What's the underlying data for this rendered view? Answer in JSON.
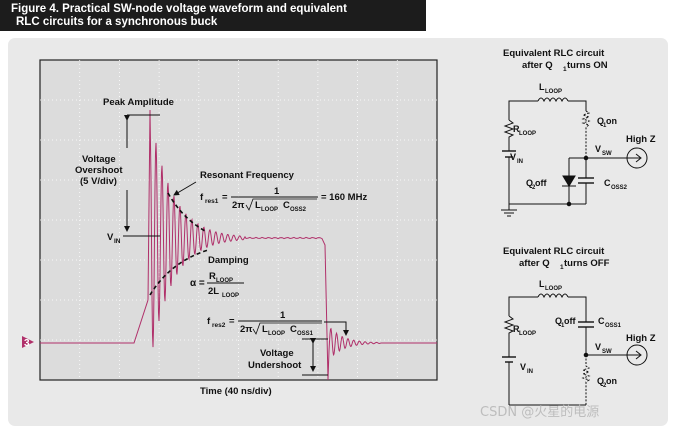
{
  "figure_title_line1": "Figure 4. Practical SW-node voltage waveform and equivalent",
  "figure_title_line2": "RLC circuits for a synchronous buck",
  "scope": {
    "peak_amplitude": "Peak Amplitude",
    "voltage_overshoot": [
      "Voltage",
      "Overshoot",
      "(5 V/div)"
    ],
    "vin": "V",
    "vin_sub": "IN",
    "resonant_frequency": "Resonant Frequency",
    "fres1_prefix": "f",
    "fres1_sub": "res1",
    "fres1_value": "= 160 MHz",
    "damping": "Damping",
    "alpha": "α =",
    "fres2_prefix": "f",
    "fres2_sub": "res2",
    "voltage_undershoot": [
      "Voltage",
      "Undershoot"
    ],
    "time_axis": "Time (40 ns/div)",
    "channel_marker": "3",
    "eq_one": "1",
    "eq_two_pi": "2π",
    "eq_L": "L",
    "eq_loop": "LOOP",
    "eq_C": "C",
    "eq_oss2": "OSS2",
    "eq_oss1": "OSS1",
    "eq_R": "R",
    "eq_two_L": "2L",
    "eq_equals": "="
  },
  "circuit_on": {
    "title": [
      "Equivalent RLC circuit",
      "after Q"
    ],
    "title_sub": "1",
    "title_tail": " turns ON",
    "lloop": "L",
    "lloop_sub": "LOOP",
    "rloop": "R",
    "rloop_sub": "LOOP",
    "q1": "Q",
    "q1_sub": "1",
    "q1_tail": " on",
    "vin": "V",
    "vin_sub": "IN",
    "vsw": "V",
    "vsw_sub": "SW",
    "highz": "High Z",
    "q2": "Q",
    "q2_sub": "2",
    "q2_tail": " off",
    "coss": "C",
    "coss_sub": "OSS2"
  },
  "circuit_off": {
    "title": [
      "Equivalent RLC circuit",
      "after Q"
    ],
    "title_sub": "1",
    "title_tail": " turns OFF",
    "lloop": "L",
    "lloop_sub": "LOOP",
    "rloop": "R",
    "rloop_sub": "LOOP",
    "q1": "Q",
    "q1_sub": "1",
    "q1_tail": " off",
    "coss": "C",
    "coss_sub": "OSS1",
    "vin": "V",
    "vin_sub": "IN",
    "vsw": "V",
    "vsw_sub": "SW",
    "highz": "High Z",
    "q2": "Q",
    "q2_sub": "2",
    "q2_tail": " on"
  },
  "watermark": "CSDN @火星的电源",
  "colors": {
    "trace": "#b0306a",
    "grid": "#ffffff",
    "scope_bg": "#dcdcdc",
    "marker": "#b0306a"
  }
}
